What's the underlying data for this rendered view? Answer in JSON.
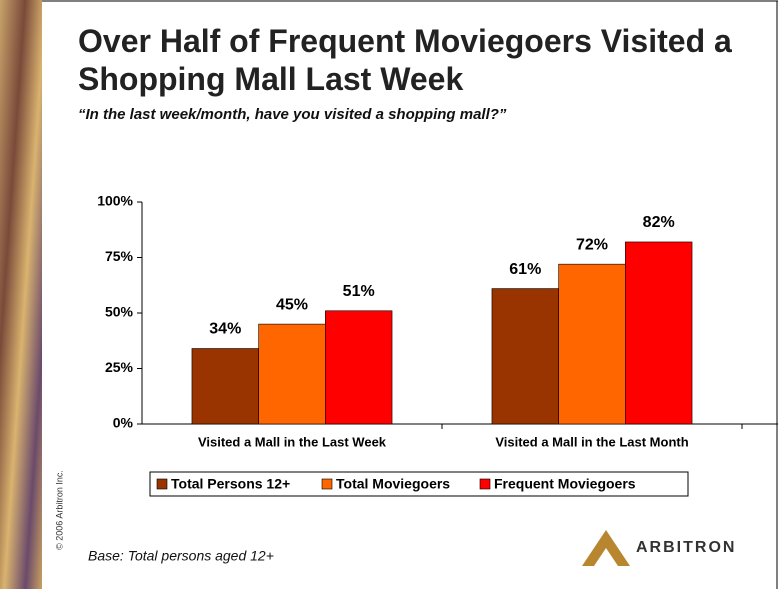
{
  "chart_data": {
    "type": "bar",
    "title": "Over Half of Frequent Moviegoers Visited a Shopping Mall Last Week",
    "subtitle": "“In the last week/month, have you visited a shopping mall?”",
    "categories": [
      "Visited a Mall in the Last Week",
      "Visited a Mall in the Last Month"
    ],
    "series": [
      {
        "name": "Total Persons 12+",
        "color": "#993300",
        "values": [
          34,
          61
        ],
        "value_labels": [
          "34%",
          "61%"
        ]
      },
      {
        "name": "Total Moviegoers",
        "color": "#ff6600",
        "values": [
          45,
          72
        ],
        "value_labels": [
          "45%",
          "72%"
        ]
      },
      {
        "name": "Frequent Moviegoers",
        "color": "#ff0000",
        "values": [
          51,
          82
        ],
        "value_labels": [
          "51%",
          "82%"
        ]
      }
    ],
    "ylim": [
      0,
      100
    ],
    "yticks": [
      {
        "value": 0,
        "label": "0%"
      },
      {
        "value": 25,
        "label": "25%"
      },
      {
        "value": 50,
        "label": "50%"
      },
      {
        "value": 75,
        "label": "75%"
      },
      {
        "value": 100,
        "label": "100%"
      }
    ],
    "grid": false,
    "legend": "bottom"
  },
  "footer": {
    "base": "Base:  Total persons aged 12+",
    "copyright": "© 2006 Arbitron Inc.",
    "logo": "ARBITRON"
  }
}
